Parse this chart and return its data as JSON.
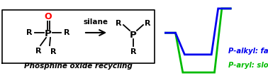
{
  "background_color": "#ffffff",
  "box_color": "#000000",
  "title_text": "Phosphine oxide recycling",
  "silane_label": "silane",
  "green_color": "#00bb00",
  "blue_color": "#0000ee",
  "black_color": "#000000",
  "red_color": "#ff0000",
  "green_label": "P-aryl: slow",
  "blue_label": "P-alkyl: fast",
  "green_curve_x": [
    0.0,
    0.18,
    0.3,
    0.52,
    0.62,
    0.82,
    0.94,
    1.1
  ],
  "green_curve_y": [
    0.38,
    0.38,
    1.0,
    1.0,
    1.0,
    1.0,
    0.0,
    0.0
  ],
  "blue_curve_x": [
    0.0,
    0.18,
    0.33,
    0.52,
    0.62,
    0.77,
    0.88,
    1.1
  ],
  "blue_curve_y": [
    0.38,
    0.38,
    0.72,
    0.72,
    0.72,
    0.72,
    0.0,
    0.0
  ],
  "lw_green": 2.0,
  "lw_blue": 2.0
}
